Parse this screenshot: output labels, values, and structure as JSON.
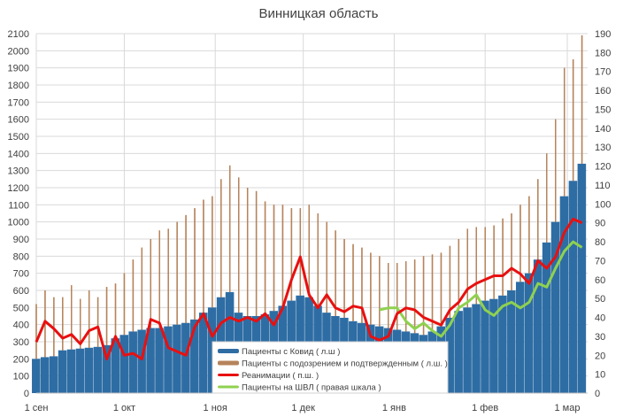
{
  "chart_data": {
    "type": "bar+line",
    "title": "Винницкая область",
    "left_axis": {
      "range": [
        0,
        2100
      ],
      "step": 100
    },
    "right_axis": {
      "range": [
        0,
        190
      ],
      "step": 10
    },
    "x_ticks": [
      {
        "date": "09-01",
        "label": "1 сен"
      },
      {
        "date": "10-01",
        "label": "1 окт"
      },
      {
        "date": "11-01",
        "label": "1 ноя"
      },
      {
        "date": "12-01",
        "label": "1 дек"
      },
      {
        "date": "01-01",
        "label": "1 янв"
      },
      {
        "date": "02-01",
        "label": "1 фев"
      },
      {
        "date": "03-01",
        "label": "1 мар"
      }
    ],
    "grid": true,
    "legend_placement": "bottom-center",
    "x": [
      "09-01",
      "09-04",
      "09-07",
      "09-10",
      "09-13",
      "09-16",
      "09-19",
      "09-22",
      "09-25",
      "09-28",
      "10-01",
      "10-04",
      "10-07",
      "10-10",
      "10-13",
      "10-16",
      "10-19",
      "10-22",
      "10-25",
      "10-28",
      "10-31",
      "11-03",
      "11-06",
      "11-09",
      "11-12",
      "11-15",
      "11-18",
      "11-21",
      "11-24",
      "11-27",
      "11-30",
      "12-03",
      "12-06",
      "12-09",
      "12-12",
      "12-15",
      "12-18",
      "12-21",
      "12-24",
      "12-27",
      "12-30",
      "01-02",
      "01-05",
      "01-08",
      "01-11",
      "01-14",
      "01-17",
      "01-20",
      "01-23",
      "01-26",
      "01-29",
      "02-01",
      "02-04",
      "02-07",
      "02-10",
      "02-13",
      "02-16",
      "02-19",
      "02-22",
      "02-25",
      "02-28",
      "03-03",
      "03-06"
    ],
    "series": [
      {
        "name": "Пациенты с Ковид ( л.ш )",
        "type": "bar",
        "axis": "left",
        "color": "#2e6da4",
        "values": [
          200,
          210,
          215,
          250,
          255,
          260,
          265,
          270,
          280,
          320,
          340,
          360,
          370,
          380,
          380,
          390,
          400,
          410,
          430,
          470,
          500,
          560,
          590,
          470,
          450,
          450,
          460,
          480,
          510,
          540,
          570,
          560,
          510,
          470,
          450,
          440,
          420,
          410,
          400,
          390,
          380,
          370,
          360,
          350,
          340,
          360,
          390,
          440,
          480,
          500,
          520,
          540,
          550,
          570,
          600,
          650,
          700,
          780,
          880,
          1000,
          1150,
          1240,
          1340
        ]
      },
      {
        "name": "Пациенты с подозрением и подтвержденным ( л.ш. )",
        "type": "bar",
        "axis": "left",
        "color": "#b5835a",
        "values": [
          520,
          600,
          560,
          560,
          630,
          550,
          600,
          560,
          620,
          640,
          700,
          780,
          850,
          900,
          950,
          960,
          1000,
          1040,
          1080,
          1130,
          1150,
          1250,
          1330,
          1260,
          1200,
          1180,
          1120,
          1100,
          1100,
          1080,
          1080,
          1100,
          1050,
          1000,
          950,
          900,
          870,
          850,
          820,
          800,
          760,
          760,
          770,
          780,
          800,
          810,
          820,
          860,
          900,
          960,
          970,
          970,
          980,
          1020,
          1050,
          1100,
          1150,
          1250,
          1400,
          1600,
          1900,
          1950,
          2090
        ]
      },
      {
        "name": "Реанимации ( п.ш. )",
        "type": "line",
        "axis": "right",
        "color": "#e81010",
        "values": [
          27,
          38,
          34,
          29,
          31,
          26,
          33,
          35,
          18,
          30,
          20,
          21,
          18,
          39,
          37,
          24,
          22,
          20,
          35,
          42,
          30,
          37,
          40,
          38,
          40,
          38,
          42,
          36,
          45,
          60,
          72,
          52,
          45,
          52,
          45,
          43,
          46,
          45,
          30,
          28,
          30,
          42,
          45,
          44,
          40,
          38,
          36,
          44,
          48,
          55,
          58,
          60,
          62,
          62,
          66,
          63,
          58,
          70,
          66,
          72,
          85,
          92,
          90
        ]
      },
      {
        "name": "Пациенты на ШВЛ ( правая шкала )",
        "type": "line",
        "axis": "right",
        "color": "#8fd14f",
        "values": [
          null,
          null,
          null,
          null,
          null,
          null,
          null,
          null,
          null,
          null,
          null,
          null,
          null,
          null,
          null,
          null,
          null,
          null,
          null,
          null,
          null,
          null,
          null,
          null,
          null,
          null,
          null,
          null,
          null,
          null,
          null,
          null,
          null,
          null,
          null,
          null,
          null,
          null,
          null,
          44,
          45,
          45,
          38,
          34,
          37,
          33,
          30,
          36,
          45,
          48,
          52,
          44,
          41,
          46,
          48,
          45,
          48,
          58,
          56,
          66,
          75,
          80,
          77
        ]
      }
    ]
  }
}
